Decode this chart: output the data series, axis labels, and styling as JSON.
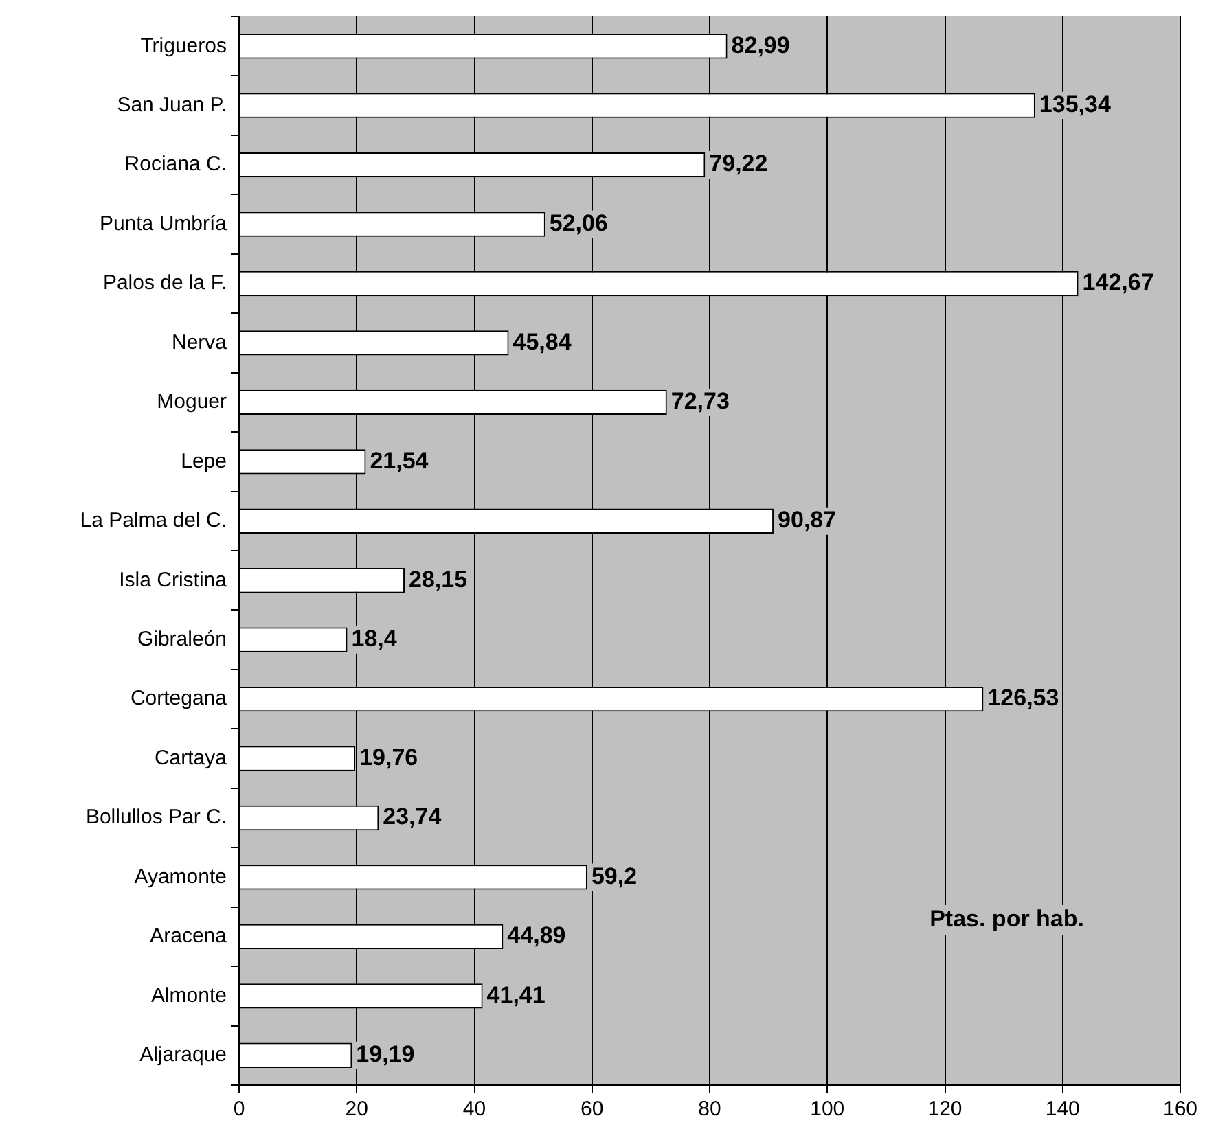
{
  "chart_data": {
    "type": "bar",
    "orientation": "horizontal",
    "categories": [
      "Trigueros",
      "San Juan P.",
      "Rociana C.",
      "Punta Umbría",
      "Palos de la F.",
      "Nerva",
      "Moguer",
      "Lepe",
      "La Palma del C.",
      "Isla Cristina",
      "Gibraleón",
      "Cortegana",
      "Cartaya",
      "Bollullos Par C.",
      "Ayamonte",
      "Aracena",
      "Almonte",
      "Aljaraque"
    ],
    "values": [
      82.99,
      135.34,
      79.22,
      52.06,
      142.67,
      45.84,
      72.73,
      21.54,
      90.87,
      28.15,
      18.4,
      126.53,
      19.76,
      23.74,
      59.2,
      44.89,
      41.41,
      19.19
    ],
    "value_labels": [
      "82,99",
      "135,34",
      "79,22",
      "52,06",
      "142,67",
      "45,84",
      "72,73",
      "21,54",
      "90,87",
      "28,15",
      "18,4",
      "126,53",
      "19,76",
      "23,74",
      "59,2",
      "44,89",
      "41,41",
      "19,19"
    ],
    "color": "#ffffff",
    "xlim": [
      0,
      160
    ],
    "xticks": [
      0,
      20,
      40,
      60,
      80,
      100,
      120,
      140,
      160
    ],
    "grid": "x",
    "legend": false,
    "annotations": [
      "Ptas. por hab."
    ]
  }
}
